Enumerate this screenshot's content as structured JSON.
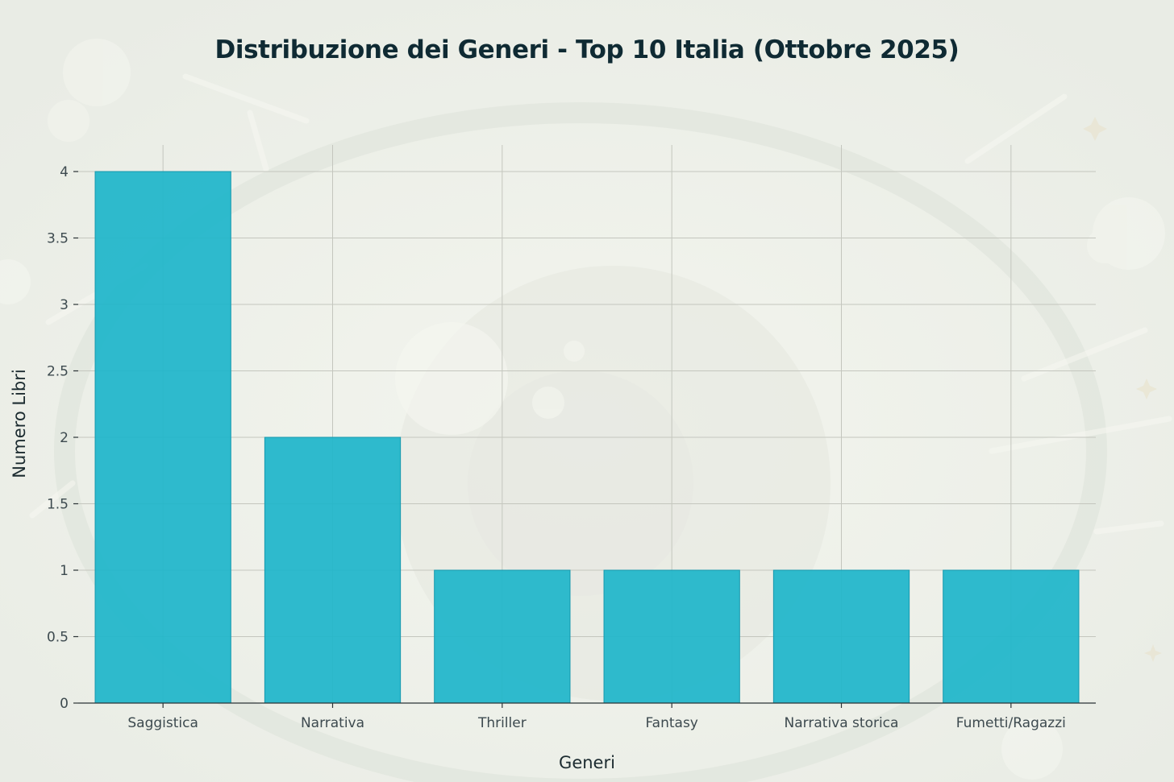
{
  "chart_data": {
    "type": "bar",
    "title": "Distribuzione dei Generi - Top 10 Italia (Ottobre 2025)",
    "xlabel": "Generi",
    "ylabel": "Numero Libri",
    "categories": [
      "Saggistica",
      "Narrativa",
      "Thriller",
      "Fantasy",
      "Narrativa storica",
      "Fumetti/Ragazzi"
    ],
    "values": [
      4,
      2,
      1,
      1,
      1,
      1
    ],
    "ylim": [
      0,
      4.2
    ],
    "yticks": [
      0,
      0.5,
      1,
      1.5,
      2,
      2.5,
      3,
      3.5,
      4
    ],
    "ytick_labels": [
      "0",
      "0.5",
      "1",
      "1.5",
      "2",
      "2.5",
      "3",
      "3.5",
      "4"
    ],
    "grid": true,
    "bar_color": "#1db5ca"
  }
}
